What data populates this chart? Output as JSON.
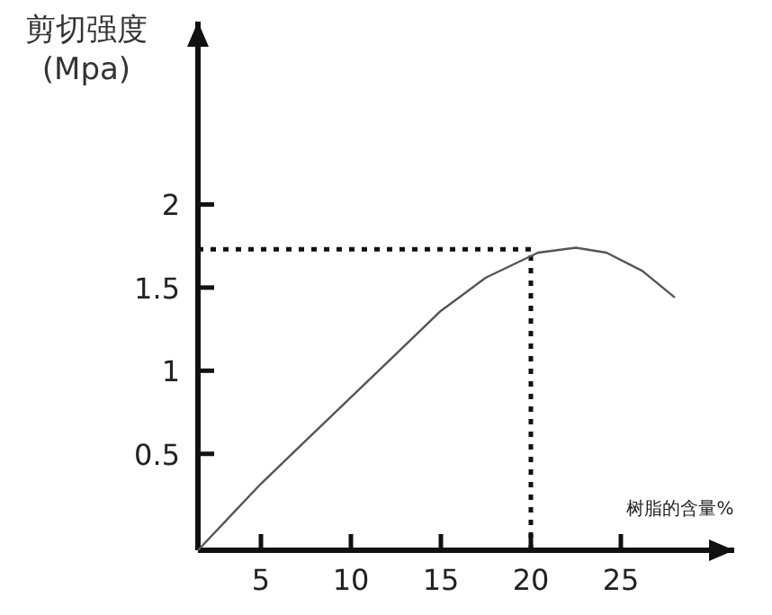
{
  "chart_data": {
    "type": "line",
    "xlabel": "树脂的含量%",
    "ylabel": "剪切强度 (Mpa)",
    "xlim": [
      1.5,
      31.3
    ],
    "ylim": [
      -0.08,
      3.1
    ],
    "xticks": [
      5,
      10,
      15,
      20,
      25
    ],
    "yticks": [
      0.5,
      1,
      1.5,
      2
    ],
    "marker": "none",
    "line_style": "solid",
    "series": [
      {
        "color": "#555555",
        "x": [
          1.5,
          5,
          7.5,
          10,
          12.5,
          15,
          17.5,
          20.4,
          22.5,
          24.2,
          26.2,
          28
        ],
        "values": [
          -0.08,
          0.32,
          0.58,
          0.84,
          1.1,
          1.36,
          1.56,
          1.71,
          1.74,
          1.71,
          1.6,
          1.44
        ]
      }
    ],
    "ref_lines": [
      {
        "axis": "x",
        "value": 20,
        "line_style": "dotted",
        "color": "#111111"
      },
      {
        "axis": "y",
        "value": 1.73,
        "line_style": "dotted",
        "color": "#111111"
      }
    ]
  }
}
